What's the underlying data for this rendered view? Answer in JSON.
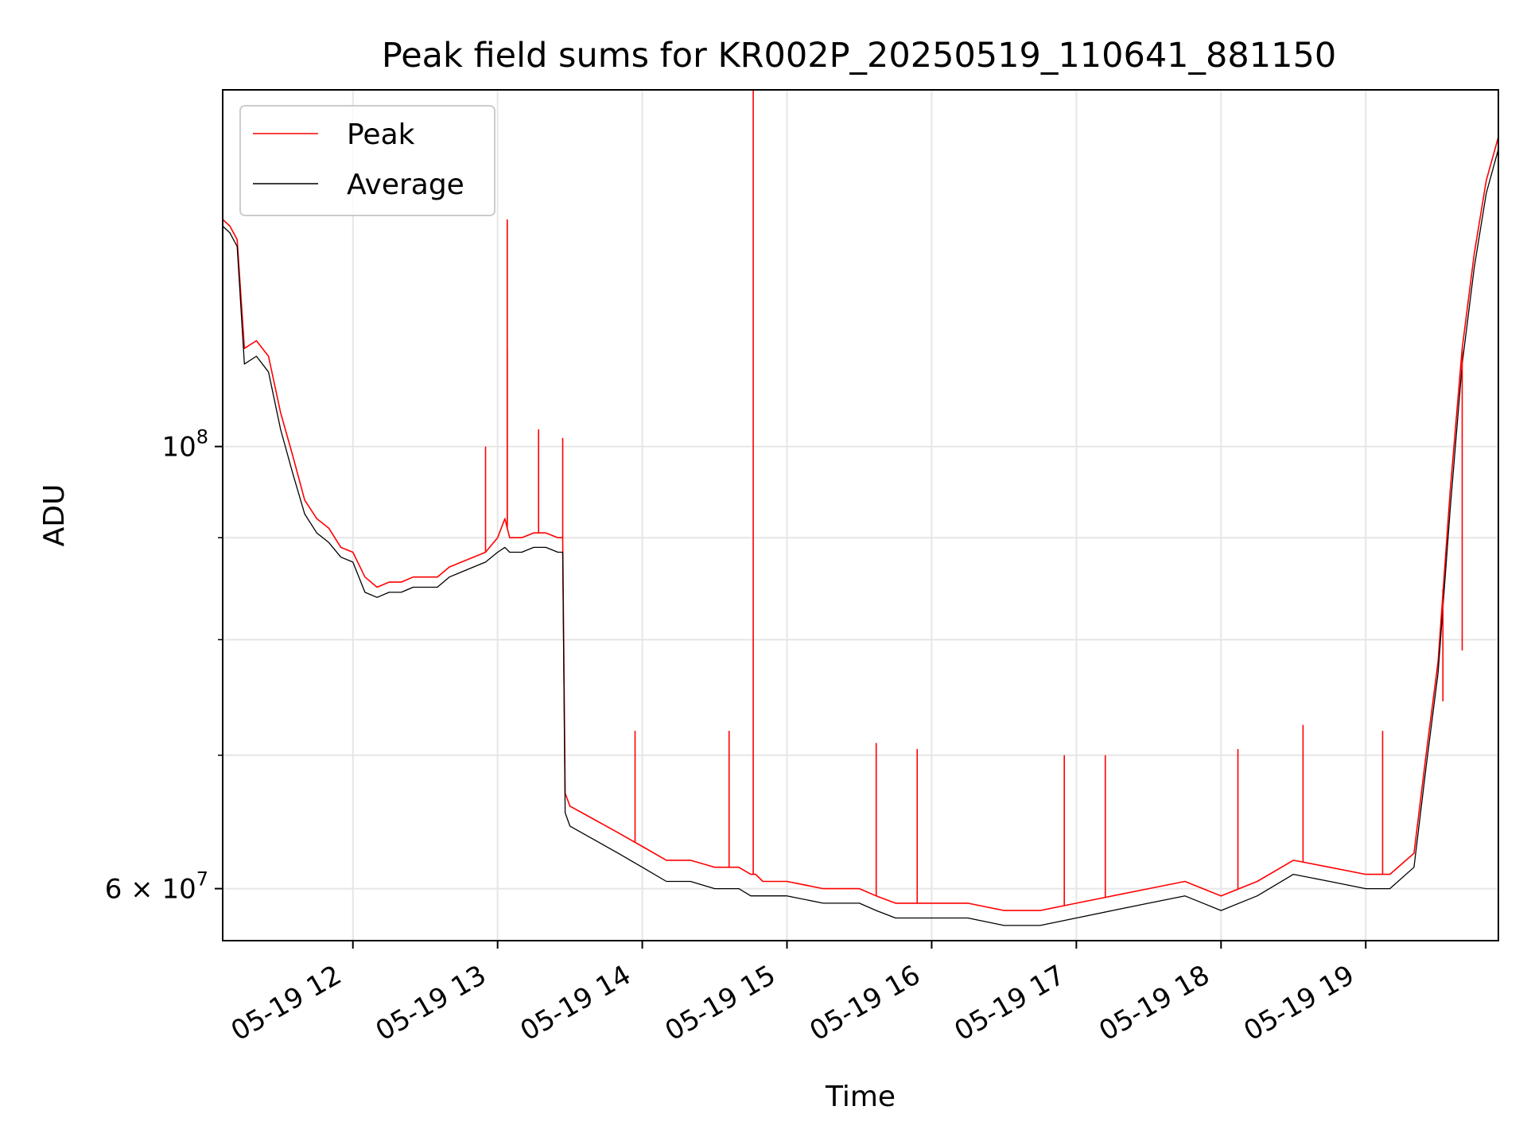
{
  "chart_data": {
    "type": "line",
    "title": "Peak field sums for KR002P_20250519_110641_881150",
    "xlabel": "Time",
    "ylabel": "ADU",
    "y_scale": "log",
    "xlim": [
      "2025-05-19 11:06",
      "2025-05-19 19:55"
    ],
    "ylim": [
      56500000,
      151000000
    ],
    "grid": true,
    "legend": "top-left",
    "x_ticks": [
      {
        "label": "05-19 12",
        "value": "2025-05-19 12:00"
      },
      {
        "label": "05-19 13",
        "value": "2025-05-19 13:00"
      },
      {
        "label": "05-19 14",
        "value": "2025-05-19 14:00"
      },
      {
        "label": "05-19 15",
        "value": "2025-05-19 15:00"
      },
      {
        "label": "05-19 16",
        "value": "2025-05-19 16:00"
      },
      {
        "label": "05-19 17",
        "value": "2025-05-19 17:00"
      },
      {
        "label": "05-19 18",
        "value": "2025-05-19 18:00"
      },
      {
        "label": "05-19 19",
        "value": "2025-05-19 19:00"
      }
    ],
    "y_ticks": [
      {
        "label": "10",
        "exp": "8",
        "value": 100000000
      },
      {
        "label": "6 × 10",
        "exp": "7",
        "value": 60000000
      }
    ],
    "y_minor_ticks": [
      70000000,
      80000000,
      90000000
    ],
    "series": [
      {
        "name": "Peak",
        "color": "#ff0000",
        "x": [
          "2025-05-19 11:06",
          "2025-05-19 11:09",
          "2025-05-19 11:12",
          "2025-05-19 11:15",
          "2025-05-19 11:20",
          "2025-05-19 11:25",
          "2025-05-19 11:30",
          "2025-05-19 11:35",
          "2025-05-19 11:40",
          "2025-05-19 11:45",
          "2025-05-19 11:50",
          "2025-05-19 11:55",
          "2025-05-19 12:00",
          "2025-05-19 12:05",
          "2025-05-19 12:10",
          "2025-05-19 12:15",
          "2025-05-19 12:20",
          "2025-05-19 12:25",
          "2025-05-19 12:30",
          "2025-05-19 12:35",
          "2025-05-19 12:40",
          "2025-05-19 12:45",
          "2025-05-19 12:50",
          "2025-05-19 12:55",
          "2025-05-19 13:00",
          "2025-05-19 13:03",
          "2025-05-19 13:05",
          "2025-05-19 13:10",
          "2025-05-19 13:15",
          "2025-05-19 13:20",
          "2025-05-19 13:25",
          "2025-05-19 13:27",
          "2025-05-19 13:28",
          "2025-05-19 13:30",
          "2025-05-19 13:40",
          "2025-05-19 13:50",
          "2025-05-19 14:00",
          "2025-05-19 14:10",
          "2025-05-19 14:20",
          "2025-05-19 14:30",
          "2025-05-19 14:40",
          "2025-05-19 14:45",
          "2025-05-19 14:46",
          "2025-05-19 14:47",
          "2025-05-19 14:50",
          "2025-05-19 15:00",
          "2025-05-19 15:15",
          "2025-05-19 15:30",
          "2025-05-19 15:37",
          "2025-05-19 15:45",
          "2025-05-19 16:00",
          "2025-05-19 16:15",
          "2025-05-19 16:30",
          "2025-05-19 16:45",
          "2025-05-19 17:00",
          "2025-05-19 17:15",
          "2025-05-19 17:30",
          "2025-05-19 17:45",
          "2025-05-19 18:00",
          "2025-05-19 18:15",
          "2025-05-19 18:30",
          "2025-05-19 18:45",
          "2025-05-19 19:00",
          "2025-05-19 19:10",
          "2025-05-19 19:20",
          "2025-05-19 19:25",
          "2025-05-19 19:30",
          "2025-05-19 19:35",
          "2025-05-19 19:40",
          "2025-05-19 19:45",
          "2025-05-19 19:50",
          "2025-05-19 19:55"
        ],
        "values": [
          130000000,
          129000000,
          127000000,
          112000000,
          113000000,
          111000000,
          104000000,
          99000000,
          94000000,
          92000000,
          91000000,
          89000000,
          88500000,
          86000000,
          85000000,
          85500000,
          85500000,
          86000000,
          86000000,
          86000000,
          87000000,
          87500000,
          88000000,
          88500000,
          90000000,
          92000000,
          90000000,
          90000000,
          90500000,
          90500000,
          90000000,
          90000000,
          67000000,
          66000000,
          65000000,
          64000000,
          63000000,
          62000000,
          62000000,
          61500000,
          61500000,
          61000000,
          61000000,
          61000000,
          60500000,
          60500000,
          60000000,
          60000000,
          59500000,
          59000000,
          59000000,
          59000000,
          58500000,
          58500000,
          59000000,
          59500000,
          60000000,
          60500000,
          59500000,
          60500000,
          62000000,
          61500000,
          61000000,
          61000000,
          62500000,
          70000000,
          78000000,
          95000000,
          112000000,
          125000000,
          136000000,
          143000000
        ]
      },
      {
        "name": "Average",
        "color": "#000000",
        "x": [
          "2025-05-19 11:06",
          "2025-05-19 11:09",
          "2025-05-19 11:12",
          "2025-05-19 11:15",
          "2025-05-19 11:20",
          "2025-05-19 11:25",
          "2025-05-19 11:30",
          "2025-05-19 11:35",
          "2025-05-19 11:40",
          "2025-05-19 11:45",
          "2025-05-19 11:50",
          "2025-05-19 11:55",
          "2025-05-19 12:00",
          "2025-05-19 12:05",
          "2025-05-19 12:10",
          "2025-05-19 12:15",
          "2025-05-19 12:20",
          "2025-05-19 12:25",
          "2025-05-19 12:30",
          "2025-05-19 12:35",
          "2025-05-19 12:40",
          "2025-05-19 12:45",
          "2025-05-19 12:50",
          "2025-05-19 12:55",
          "2025-05-19 13:00",
          "2025-05-19 13:03",
          "2025-05-19 13:05",
          "2025-05-19 13:10",
          "2025-05-19 13:15",
          "2025-05-19 13:20",
          "2025-05-19 13:25",
          "2025-05-19 13:27",
          "2025-05-19 13:28",
          "2025-05-19 13:30",
          "2025-05-19 13:40",
          "2025-05-19 13:50",
          "2025-05-19 14:00",
          "2025-05-19 14:10",
          "2025-05-19 14:20",
          "2025-05-19 14:30",
          "2025-05-19 14:40",
          "2025-05-19 14:45",
          "2025-05-19 14:46",
          "2025-05-19 14:47",
          "2025-05-19 14:50",
          "2025-05-19 15:00",
          "2025-05-19 15:15",
          "2025-05-19 15:30",
          "2025-05-19 15:37",
          "2025-05-19 15:45",
          "2025-05-19 16:00",
          "2025-05-19 16:15",
          "2025-05-19 16:30",
          "2025-05-19 16:45",
          "2025-05-19 17:00",
          "2025-05-19 17:15",
          "2025-05-19 17:30",
          "2025-05-19 17:45",
          "2025-05-19 18:00",
          "2025-05-19 18:15",
          "2025-05-19 18:30",
          "2025-05-19 18:45",
          "2025-05-19 19:00",
          "2025-05-19 19:10",
          "2025-05-19 19:20",
          "2025-05-19 19:25",
          "2025-05-19 19:30",
          "2025-05-19 19:35",
          "2025-05-19 19:40",
          "2025-05-19 19:45",
          "2025-05-19 19:50",
          "2025-05-19 19:55"
        ],
        "values": [
          129000000,
          128000000,
          126000000,
          110000000,
          111000000,
          109000000,
          102000000,
          97000000,
          92500000,
          90500000,
          89500000,
          88000000,
          87500000,
          84500000,
          84000000,
          84500000,
          84500000,
          85000000,
          85000000,
          85000000,
          86000000,
          86500000,
          87000000,
          87500000,
          88500000,
          89000000,
          88500000,
          88500000,
          89000000,
          89000000,
          88500000,
          88500000,
          65500000,
          64500000,
          63500000,
          62500000,
          61500000,
          60500000,
          60500000,
          60000000,
          60000000,
          59500000,
          59500000,
          59500000,
          59500000,
          59500000,
          59000000,
          59000000,
          58500000,
          58000000,
          58000000,
          58000000,
          57500000,
          57500000,
          58000000,
          58500000,
          59000000,
          59500000,
          58500000,
          59500000,
          61000000,
          60500000,
          60000000,
          60000000,
          61500000,
          69000000,
          77000000,
          93000000,
          110000000,
          123000000,
          134000000,
          141000000
        ]
      }
    ],
    "spikes": [
      {
        "series": "Peak",
        "x": "2025-05-19 13:04",
        "value": 130000000
      },
      {
        "series": "Peak",
        "x": "2025-05-19 13:04",
        "value": 112000000
      },
      {
        "series": "Peak",
        "x": "2025-05-19 13:17",
        "value": 102000000
      },
      {
        "series": "Peak",
        "x": "2025-05-19 13:27",
        "value": 101000000
      },
      {
        "series": "Peak",
        "x": "2025-05-19 12:55",
        "value": 100000000
      },
      {
        "series": "Peak",
        "x": "2025-05-19 13:57",
        "value": 72000000
      },
      {
        "series": "Peak",
        "x": "2025-05-19 14:36",
        "value": 72000000
      },
      {
        "series": "Peak",
        "x": "2025-05-19 14:46",
        "value": 151000000
      },
      {
        "series": "Peak",
        "x": "2025-05-19 15:37",
        "value": 71000000
      },
      {
        "series": "Peak",
        "x": "2025-05-19 15:54",
        "value": 70500000
      },
      {
        "series": "Peak",
        "x": "2025-05-19 16:55",
        "value": 70000000
      },
      {
        "series": "Peak",
        "x": "2025-05-19 17:12",
        "value": 70000000
      },
      {
        "series": "Peak",
        "x": "2025-05-19 18:07",
        "value": 70500000
      },
      {
        "series": "Peak",
        "x": "2025-05-19 18:34",
        "value": 72500000
      },
      {
        "series": "Peak",
        "x": "2025-05-19 19:07",
        "value": 72000000
      },
      {
        "series": "Peak",
        "x": "2025-05-19 19:32",
        "value": 74500000
      },
      {
        "series": "Peak",
        "x": "2025-05-19 19:40",
        "value": 79000000
      }
    ]
  }
}
